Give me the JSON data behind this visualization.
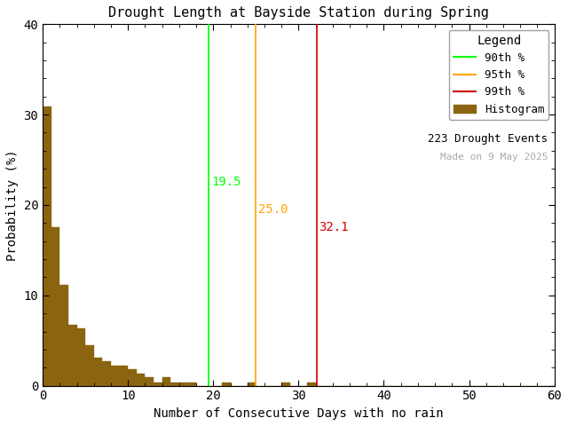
{
  "title": "Drought Length at Bayside Station during Spring",
  "xlabel": "Number of Consecutive Days with no rain",
  "ylabel": "Probability (%)",
  "xlim": [
    0,
    60
  ],
  "ylim": [
    0,
    40
  ],
  "xticks": [
    0,
    10,
    20,
    30,
    40,
    50,
    60
  ],
  "yticks": [
    0,
    10,
    20,
    30,
    40
  ],
  "bar_color": "#8B6410",
  "bar_edgecolor": "#8B6410",
  "bin_width": 1,
  "percentile_90": 19.5,
  "percentile_95": 25.0,
  "percentile_99": 32.1,
  "percentile_90_color": "#00FF00",
  "percentile_95_color": "#FFA500",
  "percentile_99_color": "#CC0000",
  "n_events": 223,
  "note": "Made on 9 May 2025",
  "note_color": "#AAAAAA",
  "legend_title": "Legend",
  "background_color": "#ffffff",
  "hist_values": [
    30.9,
    17.5,
    11.2,
    6.7,
    6.3,
    4.5,
    3.1,
    2.7,
    2.2,
    2.2,
    1.8,
    1.3,
    0.9,
    0.4,
    0.9,
    0.4,
    0.4,
    0.4,
    0.0,
    0.0,
    0.0,
    0.4,
    0.0,
    0.0,
    0.4,
    0.0,
    0.0,
    0.0,
    0.4,
    0.0,
    0.0,
    0.4,
    0.0,
    0.0,
    0.0,
    0.0,
    0.0,
    0.0,
    0.0,
    0.0,
    0.0,
    0.0,
    0.0,
    0.0,
    0.0,
    0.0,
    0.0,
    0.0,
    0.0,
    0.0,
    0.0,
    0.0,
    0.0,
    0.0,
    0.0,
    0.0,
    0.0,
    0.0,
    0.0,
    0.0
  ]
}
